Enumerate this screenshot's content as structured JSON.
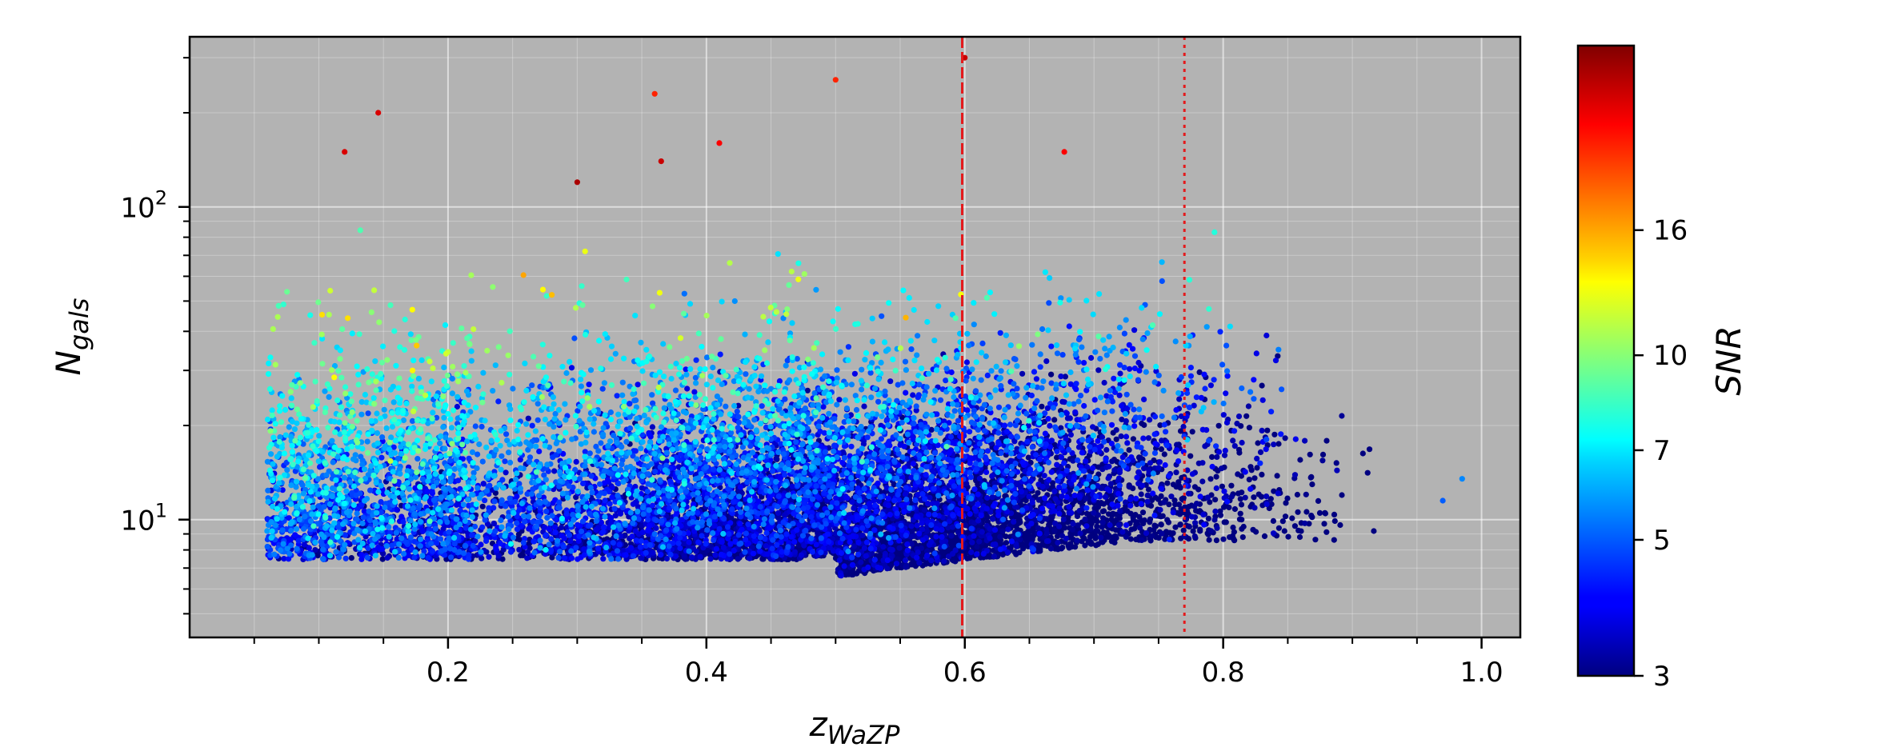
{
  "chart_data": {
    "type": "scatter",
    "xlabel_main": "z",
    "xlabel_sub": "WaZP",
    "ylabel_main": "N",
    "ylabel_sub": "gals",
    "xlim": [
      0.0,
      1.03
    ],
    "ylim": [
      4.2,
      350
    ],
    "yscale": "log",
    "grid": true,
    "background": "#b3b3b3",
    "x_ticks": [
      {
        "value": 0.2,
        "label": "0.2"
      },
      {
        "value": 0.4,
        "label": "0.4"
      },
      {
        "value": 0.6,
        "label": "0.6"
      },
      {
        "value": 0.8,
        "label": "0.8"
      },
      {
        "value": 1.0,
        "label": "1.0"
      }
    ],
    "y_ticks": [
      {
        "value": 10,
        "base": "10",
        "exp": "1"
      },
      {
        "value": 100,
        "base": "10",
        "exp": "2"
      }
    ],
    "reference_lines": [
      {
        "x": 0.598,
        "style": "dashed",
        "color": "#e41a1c"
      },
      {
        "x": 0.77,
        "style": "dotted",
        "color": "#e41a1c"
      }
    ],
    "colorbar": {
      "label": "SNR",
      "min": 3,
      "max": 32,
      "scale": "log",
      "colormap": "jet",
      "ticks": [
        {
          "value": 3,
          "label": "3"
        },
        {
          "value": 5,
          "label": "5"
        },
        {
          "value": 7,
          "label": "7"
        },
        {
          "value": 10,
          "label": "10"
        },
        {
          "value": 16,
          "label": "16"
        }
      ]
    },
    "points_summary": {
      "count_rendered": 11000,
      "x_range": [
        0.05,
        0.98
      ],
      "y_range": [
        5,
        300
      ],
      "description": ""
    }
  }
}
